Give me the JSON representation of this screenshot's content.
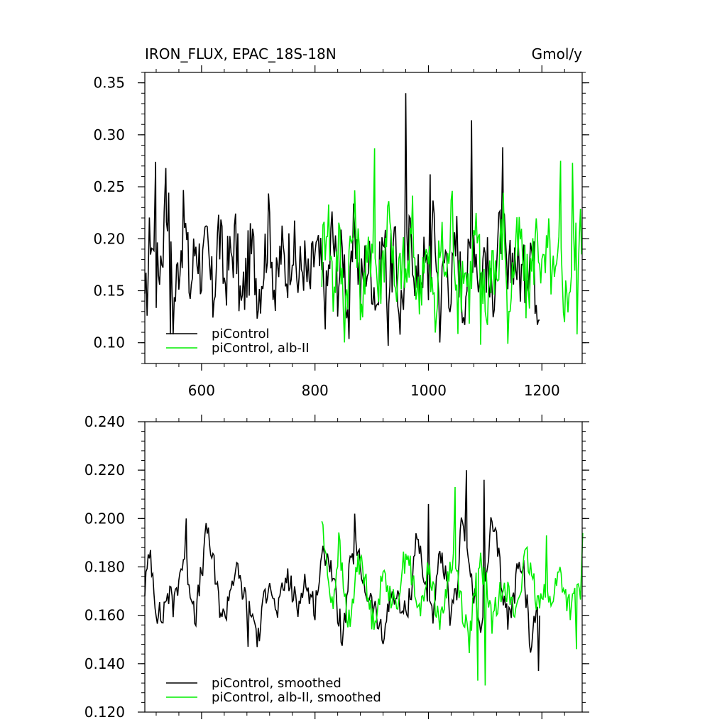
{
  "colors": {
    "background": "#ffffff",
    "axis": "#000000",
    "piControl": "#000000",
    "albII": "#00ee00"
  },
  "chart_data": [
    {
      "type": "line",
      "title": "IRON_FLUX, EPAC_18S-18N",
      "units": "Gmol/y",
      "xlim": [
        500,
        1271
      ],
      "ylim": [
        0.08,
        0.36
      ],
      "xticks": [
        600,
        800,
        1000,
        1200
      ],
      "xtick_labels": [
        "600",
        "800",
        "1000",
        "1200"
      ],
      "yticks": [
        0.1,
        0.15,
        0.2,
        0.25,
        0.3,
        0.35
      ],
      "ytick_labels": [
        "0.10",
        "0.15",
        "0.20",
        "0.25",
        "0.30",
        "0.35"
      ],
      "legend_location": "bottom-left",
      "series": [
        {
          "name": "piControl",
          "color": "#000000",
          "x_start": 500,
          "x_step": 10,
          "values": [
            0.12,
            0.21,
            0.16,
            0.19,
            0.24,
            0.13,
            0.18,
            0.22,
            0.15,
            0.2,
            0.17,
            0.19,
            0.14,
            0.21,
            0.16,
            0.18,
            0.2,
            0.13,
            0.17,
            0.19,
            0.15,
            0.18,
            0.22,
            0.14,
            0.19,
            0.17,
            0.2,
            0.16,
            0.18,
            0.15,
            0.19,
            0.17,
            0.14,
            0.21,
            0.16,
            0.19,
            0.12,
            0.22,
            0.15,
            0.18,
            0.17,
            0.14,
            0.2,
            0.16,
            0.19,
            0.13,
            0.17,
            0.21,
            0.15,
            0.18,
            0.16,
            0.22,
            0.13,
            0.19,
            0.15,
            0.2,
            0.14,
            0.17,
            0.21,
            0.16,
            0.19,
            0.14,
            0.18,
            0.22,
            0.15,
            0.19,
            0.17,
            0.16,
            0.2,
            0.15
          ],
          "peaks": [
            [
              519,
              0.274
            ],
            [
              537,
              0.268
            ],
            [
              960,
              0.34
            ],
            [
              1003,
              0.262
            ],
            [
              1076,
              0.314
            ],
            [
              1131,
              0.288
            ],
            [
              545,
              0.108
            ],
            [
              929,
              0.097
            ]
          ]
        },
        {
          "name": "piControl, alb-II",
          "color": "#00ee00",
          "x_start": 812,
          "x_step": 10,
          "values": [
            0.18,
            0.23,
            0.15,
            0.2,
            0.13,
            0.19,
            0.22,
            0.14,
            0.17,
            0.21,
            0.15,
            0.19,
            0.24,
            0.13,
            0.18,
            0.16,
            0.21,
            0.14,
            0.19,
            0.17,
            0.12,
            0.2,
            0.16,
            0.23,
            0.14,
            0.18,
            0.15,
            0.21,
            0.17,
            0.13,
            0.19,
            0.16,
            0.22,
            0.14,
            0.18,
            0.2,
            0.15,
            0.17,
            0.21,
            0.16,
            0.19,
            0.15,
            0.18,
            0.14,
            0.17,
            0.2
          ],
          "peaks": [
            [
              905,
              0.287
            ],
            [
              1233,
              0.275
            ],
            [
              1254,
              0.273
            ],
            [
              1092,
              0.098
            ],
            [
              1140,
              0.099
            ],
            [
              1262,
              0.108
            ]
          ]
        }
      ]
    },
    {
      "type": "line",
      "xlim": [
        500,
        1271
      ],
      "ylim": [
        0.12,
        0.24
      ],
      "xticks": [
        600,
        800,
        1000,
        1200
      ],
      "yticks": [
        0.12,
        0.14,
        0.16,
        0.18,
        0.2,
        0.22,
        0.24
      ],
      "ytick_labels": [
        "0.120",
        "0.140",
        "0.160",
        "0.180",
        "0.200",
        "0.220",
        "0.240"
      ],
      "legend_location": "bottom-left",
      "series": [
        {
          "name": "piControl, smoothed",
          "color": "#000000",
          "x_start": 500,
          "x_step": 10,
          "values": [
            0.172,
            0.186,
            0.163,
            0.158,
            0.17,
            0.164,
            0.176,
            0.185,
            0.172,
            0.16,
            0.178,
            0.196,
            0.182,
            0.166,
            0.158,
            0.171,
            0.179,
            0.172,
            0.165,
            0.16,
            0.15,
            0.165,
            0.178,
            0.16,
            0.166,
            0.176,
            0.17,
            0.162,
            0.176,
            0.168,
            0.164,
            0.18,
            0.188,
            0.178,
            0.162,
            0.15,
            0.176,
            0.188,
            0.18,
            0.17,
            0.165,
            0.158,
            0.149,
            0.166,
            0.17,
            0.163,
            0.16,
            0.172,
            0.196,
            0.176,
            0.168,
            0.16,
            0.185,
            0.175,
            0.158,
            0.17,
            0.204,
            0.182,
            0.168,
            0.155,
            0.17,
            0.196,
            0.19,
            0.172,
            0.158,
            0.166,
            0.186,
            0.175,
            0.145,
            0.162
          ],
          "peaks": [
            [
              1067,
              0.22
            ],
            [
              1098,
              0.216
            ],
            [
              1000,
              0.206
            ],
            [
              573,
              0.2
            ],
            [
              870,
              0.202
            ],
            [
              1194,
              0.137
            ],
            [
              682,
              0.147
            ]
          ]
        },
        {
          "name": "piControl, alb-II, smoothed",
          "color": "#00ee00",
          "x_start": 812,
          "x_step": 10,
          "values": [
            0.2,
            0.176,
            0.165,
            0.19,
            0.168,
            0.154,
            0.178,
            0.185,
            0.168,
            0.158,
            0.166,
            0.178,
            0.17,
            0.162,
            0.176,
            0.188,
            0.174,
            0.16,
            0.17,
            0.18,
            0.166,
            0.156,
            0.172,
            0.184,
            0.176,
            0.16,
            0.15,
            0.17,
            0.182,
            0.172,
            0.158,
            0.164,
            0.176,
            0.168,
            0.16,
            0.172,
            0.184,
            0.176,
            0.166,
            0.172,
            0.164,
            0.17,
            0.178,
            0.168,
            0.162,
            0.17
          ],
          "peaks": [
            [
              1047,
              0.213
            ],
            [
              1208,
              0.193
            ],
            [
              1272,
              0.194
            ],
            [
              1087,
              0.133
            ],
            [
              1100,
              0.131
            ],
            [
              1261,
              0.146
            ]
          ]
        }
      ]
    }
  ]
}
